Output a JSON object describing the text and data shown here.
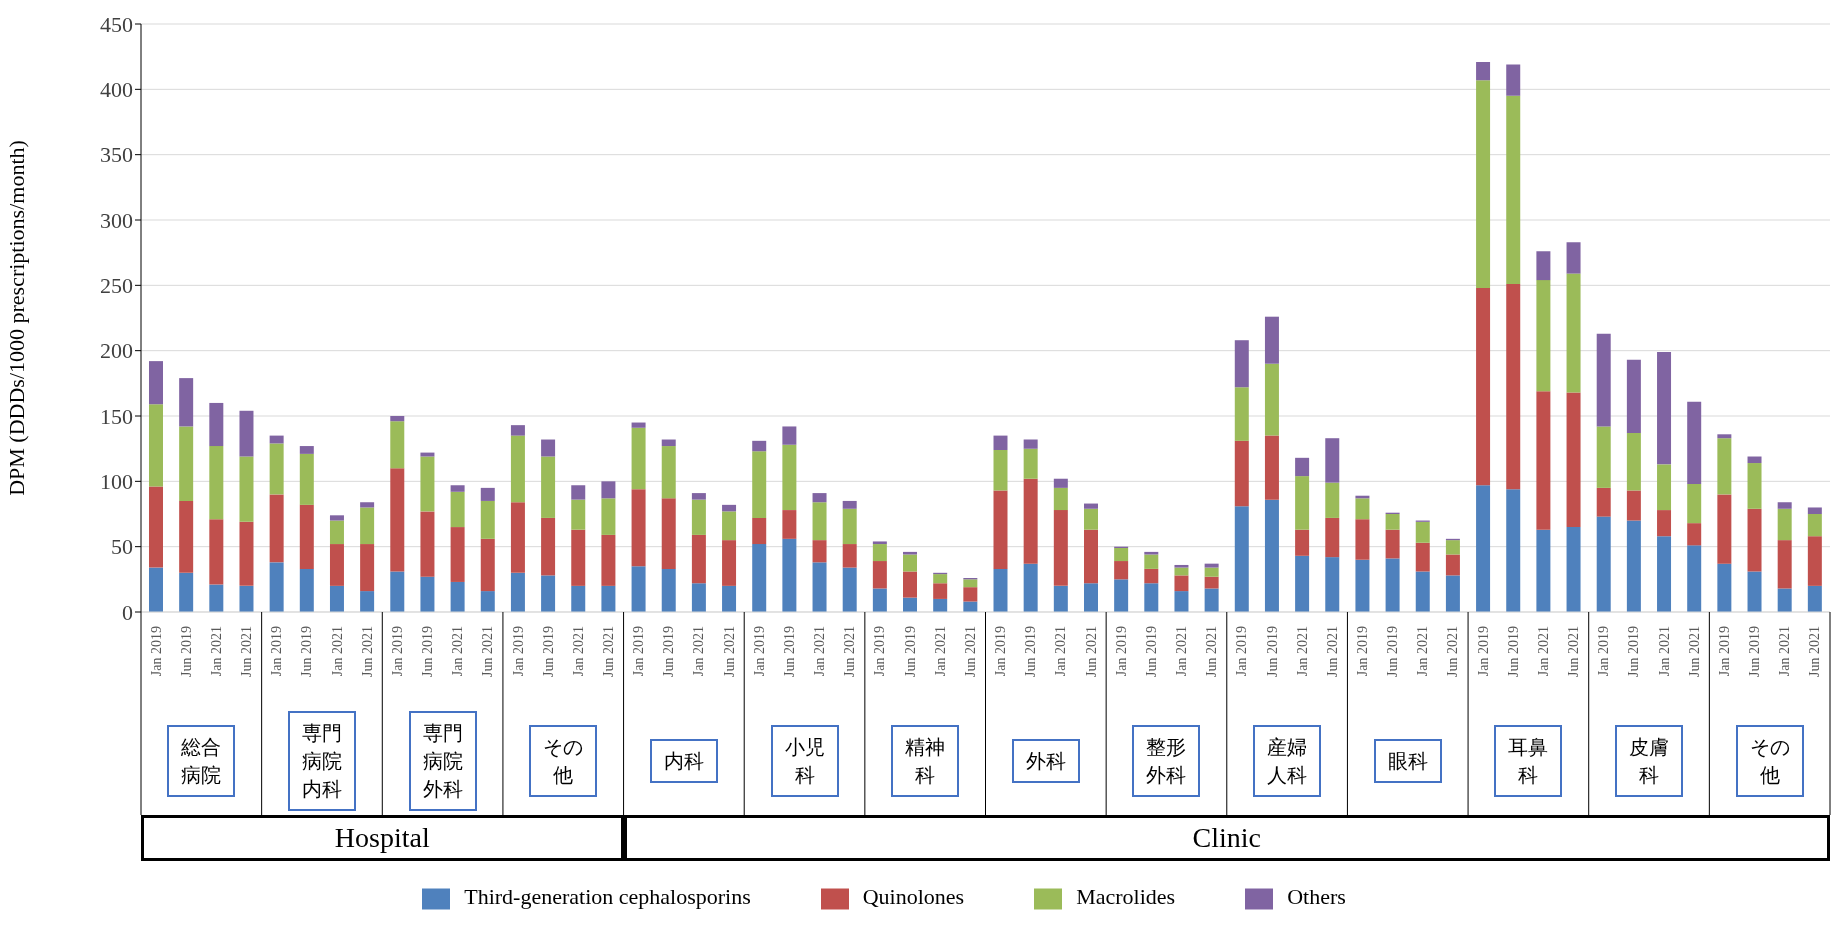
{
  "chart_data": {
    "type": "bar",
    "stacked": true,
    "ylabel": "DPM (DDDs/1000 prescriptions/month)",
    "categories": [
      "Jan 2019",
      "Jun 2019",
      "Jan 2021",
      "Jun 2021",
      "Jan 2019",
      "Jun 2019",
      "Jan 2021",
      "Jun 2021",
      "Jan 2019",
      "Jun 2019",
      "Jan 2021",
      "Jun 2021",
      "Jan 2019",
      "Jun 2019",
      "Jan 2021",
      "Jun 2021",
      "Jan 2019",
      "Jun 2019",
      "Jan 2021",
      "Jun 2021",
      "Jan 2019",
      "Jun 2019",
      "Jan 2021",
      "Jun 2021",
      "Jan 2019",
      "Jun 2019",
      "Jan 2021",
      "Jun 2021",
      "Jan 2019",
      "Jun 2019",
      "Jan 2021",
      "Jun 2021",
      "Jan 2019",
      "Jun 2019",
      "Jan 2021",
      "Jun 2021",
      "Jan 2019",
      "Jun 2019",
      "Jan 2021",
      "Jun 2021",
      "Jan 2019",
      "Jun 2019",
      "Jan 2021",
      "Jun 2021",
      "Jan 2019",
      "Jun 2019",
      "Jan 2021",
      "Jun 2021",
      "Jan 2019",
      "Jun 2019",
      "Jan 2021",
      "Jun 2021",
      "Jan 2019",
      "Jun 2019",
      "Jan 2021",
      "Jun 2021"
    ],
    "series": [
      {
        "name": "Third-generation cephalosporins",
        "color": "#4f81bd",
        "values": [
          34,
          30,
          21,
          20,
          38,
          33,
          20,
          16,
          31,
          27,
          23,
          16,
          30,
          28,
          20,
          20,
          35,
          33,
          22,
          20,
          52,
          56,
          38,
          34,
          18,
          11,
          10,
          8,
          33,
          37,
          20,
          22,
          25,
          22,
          16,
          18,
          81,
          86,
          43,
          42,
          40,
          41,
          31,
          28,
          97,
          94,
          63,
          65,
          73,
          70,
          58,
          51,
          37,
          31,
          18,
          20
        ]
      },
      {
        "name": "Quinolones",
        "color": "#c0504d",
        "values": [
          62,
          55,
          50,
          49,
          52,
          49,
          32,
          36,
          79,
          50,
          42,
          40,
          54,
          44,
          43,
          39,
          59,
          54,
          37,
          35,
          20,
          22,
          17,
          18,
          21,
          20,
          12,
          11,
          60,
          65,
          58,
          41,
          14,
          11,
          12,
          9,
          50,
          49,
          20,
          30,
          31,
          22,
          22,
          16,
          151,
          157,
          106,
          103,
          22,
          23,
          20,
          17,
          53,
          48,
          37,
          38
        ]
      },
      {
        "name": "Macrolides",
        "color": "#9bbb59",
        "values": [
          63,
          57,
          56,
          50,
          39,
          39,
          18,
          28,
          36,
          42,
          27,
          29,
          51,
          47,
          23,
          28,
          47,
          40,
          27,
          22,
          51,
          50,
          29,
          27,
          13,
          13,
          7,
          6,
          31,
          23,
          17,
          16,
          10,
          11,
          6,
          7,
          41,
          55,
          41,
          27,
          16,
          12,
          16,
          11,
          159,
          144,
          85,
          91,
          47,
          44,
          35,
          30,
          43,
          35,
          24,
          17
        ]
      },
      {
        "name": "Others",
        "color": "#8064a2",
        "values": [
          33,
          37,
          33,
          35,
          6,
          6,
          4,
          4,
          4,
          3,
          5,
          10,
          8,
          13,
          11,
          13,
          4,
          5,
          5,
          5,
          8,
          14,
          7,
          6,
          2,
          2,
          1,
          1,
          11,
          7,
          7,
          4,
          1,
          2,
          2,
          3,
          36,
          36,
          14,
          34,
          2,
          1,
          1,
          1,
          14,
          24,
          22,
          24,
          71,
          56,
          86,
          63,
          3,
          5,
          5,
          5
        ]
      }
    ],
    "ylim": [
      0,
      450
    ],
    "yticks": [
      0,
      50,
      100,
      150,
      200,
      250,
      300,
      350,
      400,
      450
    ],
    "grid": "y",
    "legend": "bottom",
    "annotations": [
      "総合病院",
      "専門病院内科",
      "専門病院外科",
      "その他",
      "内科",
      "小児科",
      "精神科",
      "外科",
      "整形外科",
      "産婦人科",
      "眼科",
      "耳鼻科",
      "皮膚科",
      "その他",
      "Hospital",
      "Clinic"
    ]
  }
}
